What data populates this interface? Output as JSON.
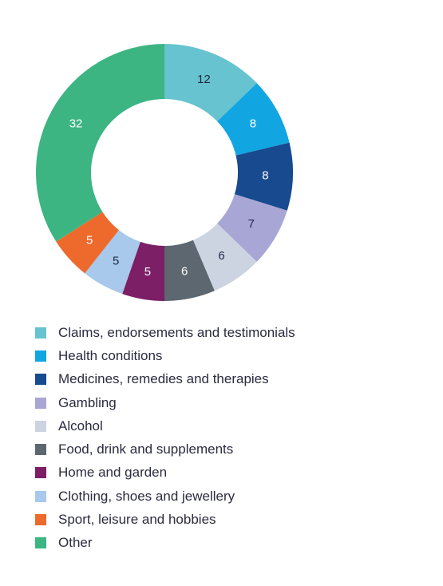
{
  "chart_data": {
    "type": "pie",
    "categories": [
      "Claims, endorsements and testimonials",
      "Health conditions",
      "Medicines, remedies and therapies",
      "Gambling",
      "Alcohol",
      "Food, drink and supplements",
      "Home and garden",
      "Clothing, shoes and jewellery",
      "Sport, leisure and hobbies",
      "Other"
    ],
    "values": [
      12,
      8,
      8,
      7,
      6,
      6,
      5,
      5,
      5,
      32
    ],
    "colors": [
      "#67c3cf",
      "#11a6e2",
      "#174a8e",
      "#a8a6d5",
      "#cdd4e1",
      "#5c6770",
      "#7c1f66",
      "#a8c8ec",
      "#ee6a2c",
      "#3cb583"
    ],
    "label_colors": [
      "#1f2a44",
      "#ffffff",
      "#ffffff",
      "#1f2a44",
      "#1f2a44",
      "#ffffff",
      "#ffffff",
      "#1f2a44",
      "#ffffff",
      "#ffffff"
    ],
    "donut": true,
    "legend_position": "bottom"
  }
}
